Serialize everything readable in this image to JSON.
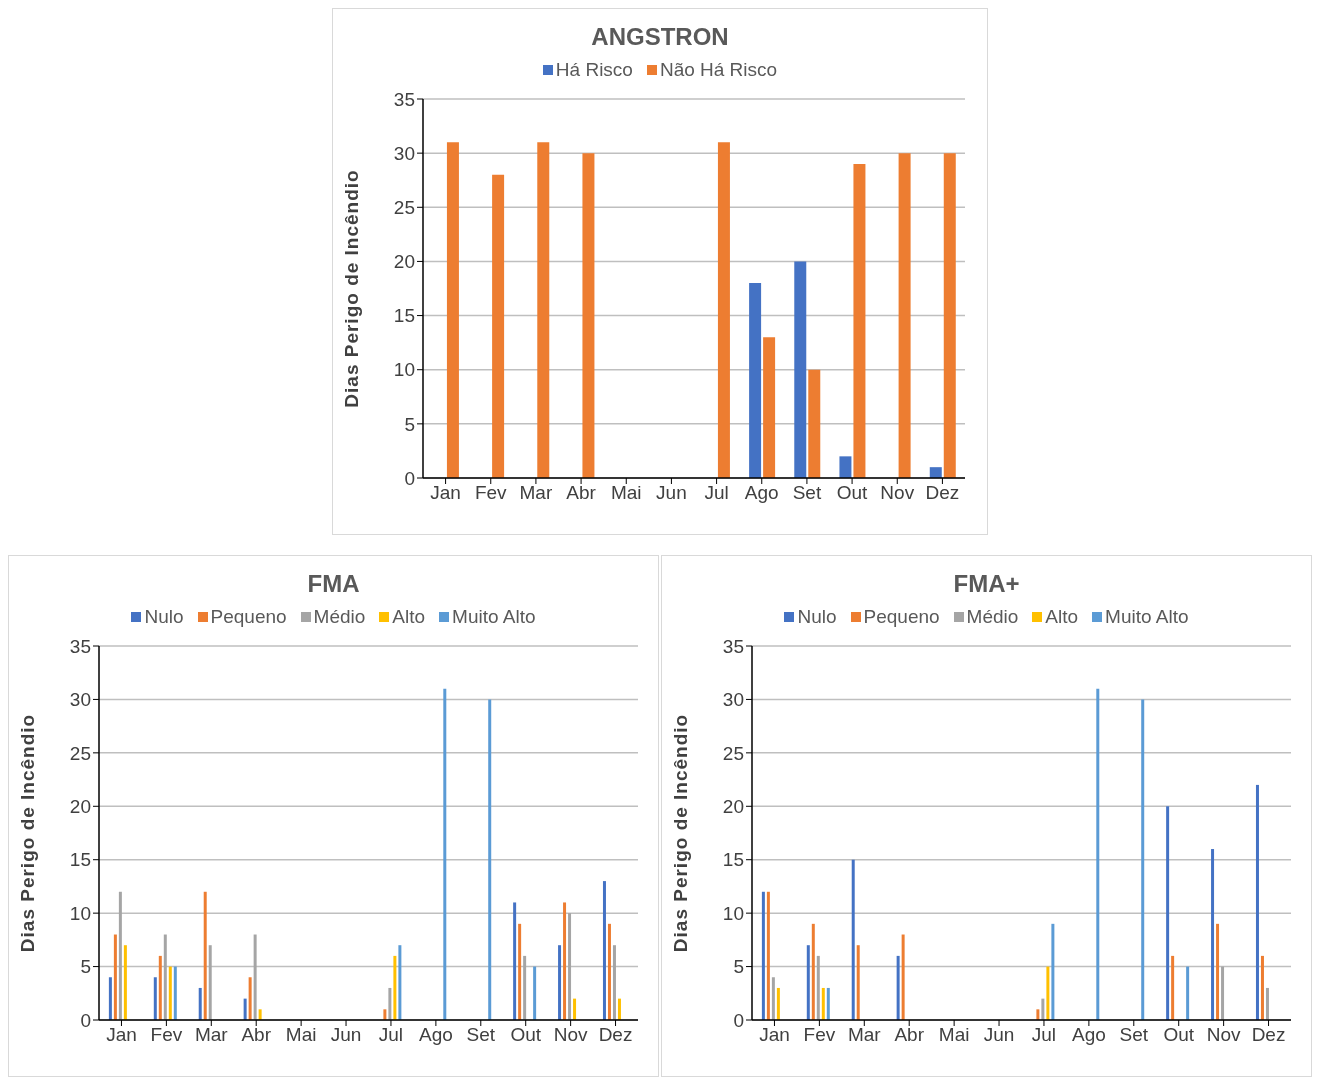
{
  "chart_data": [
    {
      "type": "bar",
      "title": "ANGSTRON",
      "ylabel": "Dias Perigo de Incêndio",
      "categories": [
        "Jan",
        "Fev",
        "Mar",
        "Abr",
        "Mai",
        "Jun",
        "Jul",
        "Ago",
        "Set",
        "Out",
        "Nov",
        "Dez"
      ],
      "series": [
        {
          "name": "Há Risco",
          "color": "#4472c4",
          "values": [
            0,
            0,
            0,
            0,
            0,
            0,
            0,
            18,
            20,
            2,
            0,
            1
          ]
        },
        {
          "name": "Não Há Risco",
          "color": "#ed7d31",
          "values": [
            31,
            28,
            31,
            30,
            0,
            0,
            31,
            13,
            10,
            29,
            30,
            30
          ]
        }
      ],
      "ylim": [
        0,
        35
      ],
      "yticks": [
        0,
        5,
        10,
        15,
        20,
        25,
        30,
        35
      ],
      "grid": "y",
      "legend": "top"
    },
    {
      "type": "bar",
      "title": "FMA",
      "ylabel": "Dias Perigo de Incêndio",
      "categories": [
        "Jan",
        "Fev",
        "Mar",
        "Abr",
        "Mai",
        "Jun",
        "Jul",
        "Ago",
        "Set",
        "Out",
        "Nov",
        "Dez"
      ],
      "series": [
        {
          "name": "Nulo",
          "color": "#4472c4",
          "values": [
            4,
            4,
            3,
            2,
            0,
            0,
            0,
            0,
            0,
            11,
            7,
            13
          ]
        },
        {
          "name": "Pequeno",
          "color": "#ed7d31",
          "values": [
            8,
            6,
            12,
            4,
            0,
            0,
            1,
            0,
            0,
            9,
            11,
            9
          ]
        },
        {
          "name": "Médio",
          "color": "#a5a5a5",
          "values": [
            12,
            8,
            7,
            8,
            0,
            0,
            3,
            0,
            0,
            6,
            10,
            7
          ]
        },
        {
          "name": "Alto",
          "color": "#ffc000",
          "values": [
            7,
            5,
            0,
            1,
            0,
            0,
            6,
            0,
            0,
            0,
            2,
            2
          ]
        },
        {
          "name": "Muito Alto",
          "color": "#5b9bd5",
          "values": [
            0,
            5,
            0,
            0,
            0,
            0,
            7,
            31,
            30,
            5,
            0,
            0
          ]
        }
      ],
      "ylim": [
        0,
        35
      ],
      "yticks": [
        0,
        5,
        10,
        15,
        20,
        25,
        30,
        35
      ],
      "grid": "y",
      "legend": "top"
    },
    {
      "type": "bar",
      "title": "FMA+",
      "ylabel": "Dias Perigo de Incêndio",
      "categories": [
        "Jan",
        "Fev",
        "Mar",
        "Abr",
        "Mai",
        "Jun",
        "Jul",
        "Ago",
        "Set",
        "Out",
        "Nov",
        "Dez"
      ],
      "series": [
        {
          "name": "Nulo",
          "color": "#4472c4",
          "values": [
            12,
            7,
            15,
            6,
            0,
            0,
            0,
            0,
            0,
            20,
            16,
            22
          ]
        },
        {
          "name": "Pequeno",
          "color": "#ed7d31",
          "values": [
            12,
            9,
            7,
            8,
            0,
            0,
            1,
            0,
            0,
            6,
            9,
            6
          ]
        },
        {
          "name": "Médio",
          "color": "#a5a5a5",
          "values": [
            4,
            6,
            0,
            0,
            0,
            0,
            2,
            0,
            0,
            0,
            5,
            3
          ]
        },
        {
          "name": "Alto",
          "color": "#ffc000",
          "values": [
            3,
            3,
            0,
            0,
            0,
            0,
            5,
            0,
            0,
            0,
            0,
            0
          ]
        },
        {
          "name": "Muito Alto",
          "color": "#5b9bd5",
          "values": [
            0,
            3,
            0,
            0,
            0,
            0,
            9,
            31,
            30,
            5,
            0,
            0
          ]
        }
      ],
      "ylim": [
        0,
        35
      ],
      "yticks": [
        0,
        5,
        10,
        15,
        20,
        25,
        30,
        35
      ],
      "grid": "y",
      "legend": "top"
    }
  ]
}
